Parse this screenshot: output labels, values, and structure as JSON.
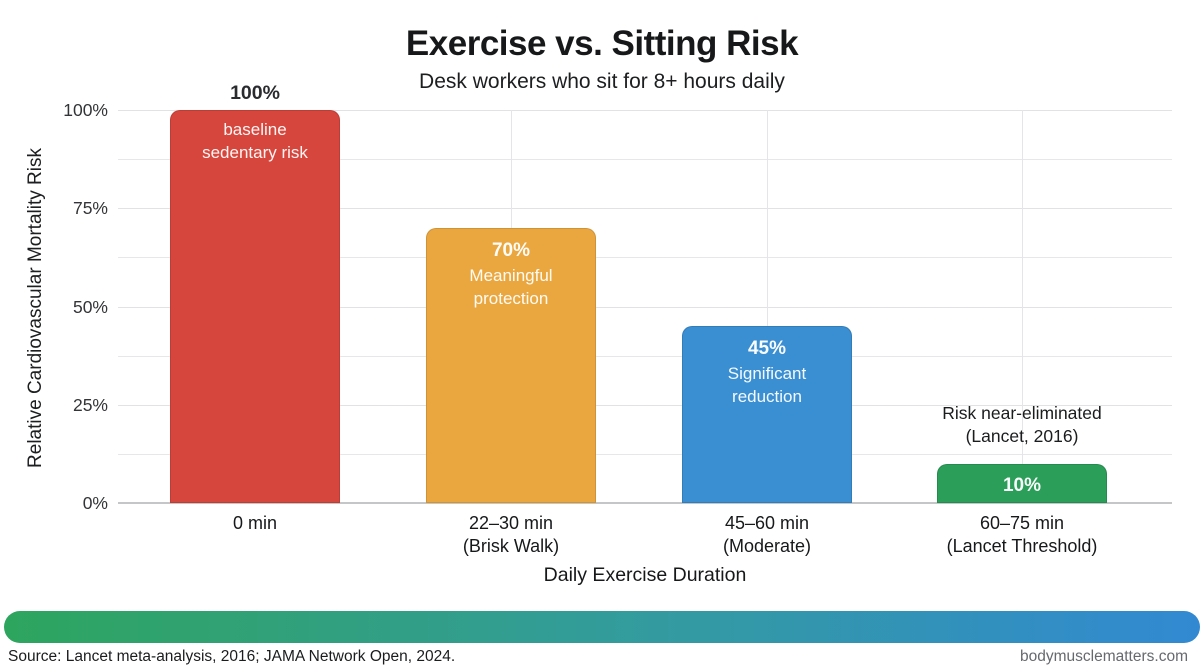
{
  "page": {
    "title": "Exercise vs. Sitting Risk",
    "subtitle": "Desk workers who sit for 8+ hours daily",
    "footer_source": "Source: Lancet meta-analysis, 2016; JAMA Network Open, 2024.",
    "footer_site": "bodymusclematters.com"
  },
  "chart_data": {
    "type": "bar",
    "title": "Exercise vs. Sitting Risk",
    "subtitle": "Desk workers who sit for 8+ hours daily",
    "xlabel": "Daily Exercise Duration",
    "ylabel": "Relative Cardiovascular Mortality Risk",
    "ylim": [
      0,
      100
    ],
    "y_tick_values": [
      0,
      25,
      50,
      75,
      100
    ],
    "y_tick_labels": [
      "0%",
      "25%",
      "50%",
      "75%",
      "100%"
    ],
    "grid": {
      "horizontal_step_pct": 12.5,
      "vertical_at_category_centers": true
    },
    "legend": "none",
    "categories": [
      "0 min",
      "22–30 min (Brisk Walk)",
      "45–60 min (Moderate)",
      "60–75 min (Lancet Threshold)"
    ],
    "values": [
      100,
      70,
      45,
      10
    ],
    "bars": [
      {
        "category_lines": [
          "0 min"
        ],
        "value": 100,
        "value_label": "100%",
        "value_label_position": "above",
        "desc_lines": [
          "baseline",
          "sedentary risk"
        ],
        "desc_position": "inside",
        "color": "#d6463c"
      },
      {
        "category_lines": [
          "22–30 min",
          "(Brisk Walk)"
        ],
        "value": 70,
        "value_label": "70%",
        "value_label_position": "inside",
        "desc_lines": [
          "Meaningful",
          "protection"
        ],
        "desc_position": "inside",
        "color": "#eba73f"
      },
      {
        "category_lines": [
          "45–60 min",
          "(Moderate)"
        ],
        "value": 45,
        "value_label": "45%",
        "value_label_position": "inside",
        "desc_lines": [
          "Significant",
          "reduction"
        ],
        "desc_position": "inside",
        "color": "#3a8ed2"
      },
      {
        "category_lines": [
          "60–75 min",
          "(Lancet Threshold)"
        ],
        "value": 10,
        "value_label": "10%",
        "value_label_position": "inside-centered",
        "desc_lines": [
          "Risk near-eliminated",
          "(Lancet, 2016)"
        ],
        "desc_position": "above",
        "color": "#2b9e59"
      }
    ],
    "footer_gradient_colors": [
      "#2ea55e",
      "#3289d2"
    ]
  }
}
